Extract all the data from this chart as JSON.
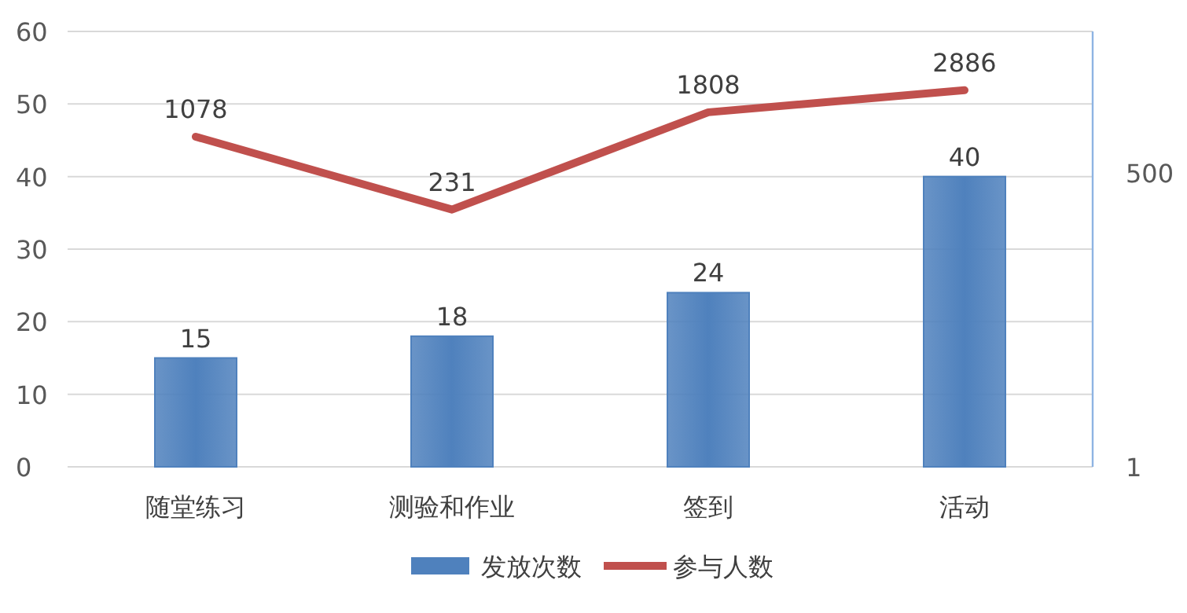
{
  "chart_data": {
    "type": "bar",
    "categories": [
      "随堂练习",
      "测验和作业",
      "签到",
      "活动"
    ],
    "series": [
      {
        "name": "发放次数",
        "color": "#4f81bd",
        "values": [
          15,
          18,
          24,
          40
        ]
      },
      {
        "name": "参与人数",
        "type": "line",
        "axis": "y2",
        "color": "#c0504d",
        "values": [
          1078,
          231,
          1808,
          2886
        ]
      }
    ],
    "ylim": [
      0,
      60
    ],
    "yticks": [
      0,
      10,
      20,
      30,
      40,
      50,
      60
    ],
    "y2lim": [
      1,
      10000
    ],
    "y2ticks": [
      1,
      500
    ],
    "log": "y2",
    "grid": "y",
    "legend": "bottom",
    "data_labels": true
  }
}
